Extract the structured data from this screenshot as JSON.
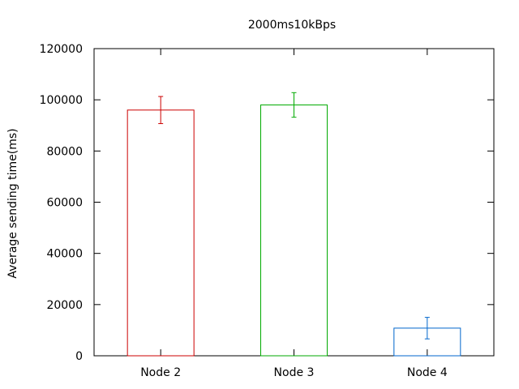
{
  "chart_data": {
    "type": "bar",
    "title": "2000ms10kBps",
    "xlabel": "",
    "ylabel": "Average sending time(ms)",
    "categories": [
      "Node 2",
      "Node 3",
      "Node 4"
    ],
    "values": [
      96000,
      98000,
      10800
    ],
    "errors": [
      5300,
      4800,
      4200
    ],
    "bar_colors": [
      "#cc0000",
      "#00aa00",
      "#0066cc"
    ],
    "ylim": [
      0,
      120000
    ],
    "yticks": [
      0,
      20000,
      40000,
      60000,
      80000,
      100000,
      120000
    ],
    "ytick_labels": [
      "0",
      "20000",
      "40000",
      "60000",
      "80000",
      "100000",
      "120000"
    ],
    "grid": false,
    "legend": false
  }
}
